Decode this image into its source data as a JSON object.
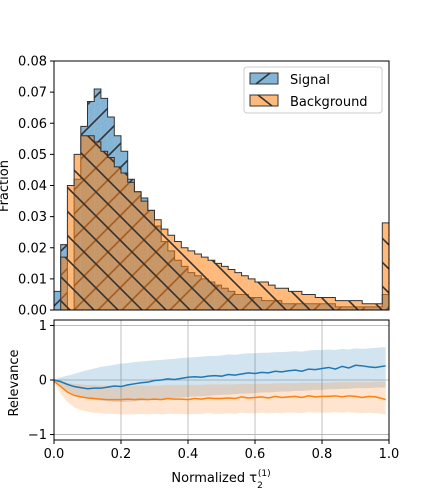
{
  "chart_data": [
    {
      "type": "bar",
      "subtype": "step-histogram",
      "title": "",
      "xlabel": "",
      "ylabel": "Fraction",
      "xlim": [
        0.0,
        1.0
      ],
      "ylim": [
        0.0,
        0.08
      ],
      "yticks": [
        "0.00",
        "0.01",
        "0.02",
        "0.03",
        "0.04",
        "0.05",
        "0.06",
        "0.07",
        "0.08"
      ],
      "grid": false,
      "legend_position": "top-right",
      "bin_width": 0.02,
      "series": [
        {
          "name": "Signal",
          "color": "#1f77b4",
          "hatch": "diagonal-forward",
          "values": [
            0.006,
            0.021,
            0.0,
            0.042,
            0.059,
            0.067,
            0.071,
            0.068,
            0.062,
            0.056,
            0.051,
            0.042,
            0.038,
            0.036,
            0.032,
            0.027,
            0.022,
            0.019,
            0.016,
            0.014,
            0.012,
            0.011,
            0.01,
            0.009,
            0.008,
            0.007,
            0.006,
            0.005,
            0.005,
            0.004,
            0.004,
            0.003,
            0.003,
            0.003,
            0.002,
            0.002,
            0.002,
            0.002,
            0.002,
            0.002,
            0.002,
            0.002,
            0.001,
            0.001,
            0.001,
            0.001,
            0.001,
            0.001,
            0.001,
            0.005
          ]
        },
        {
          "name": "Background",
          "color": "#ff7f0e",
          "hatch": "diagonal-backward",
          "values": [
            0.0,
            0.017,
            0.04,
            0.05,
            0.056,
            0.056,
            0.054,
            0.051,
            0.049,
            0.046,
            0.044,
            0.041,
            0.038,
            0.035,
            0.032,
            0.029,
            0.026,
            0.024,
            0.022,
            0.02,
            0.019,
            0.018,
            0.017,
            0.016,
            0.015,
            0.014,
            0.013,
            0.012,
            0.011,
            0.01,
            0.009,
            0.009,
            0.008,
            0.007,
            0.007,
            0.006,
            0.006,
            0.005,
            0.005,
            0.004,
            0.004,
            0.004,
            0.003,
            0.003,
            0.003,
            0.003,
            0.002,
            0.002,
            0.002,
            0.028
          ]
        }
      ]
    },
    {
      "type": "line",
      "subtype": "line-with-band",
      "title": "",
      "xlabel": "Normalized τ",
      "xlabel_superscript": "(1)",
      "xlabel_subscript": "2",
      "ylabel": "Relevance",
      "xlim": [
        0.0,
        1.0
      ],
      "ylim": [
        -1.1,
        1.1
      ],
      "xticks": [
        "0.0",
        "0.2",
        "0.4",
        "0.6",
        "0.8",
        "1.0"
      ],
      "yticks": [
        "−1",
        "0",
        "1"
      ],
      "grid": true,
      "x": [
        0.0,
        0.02,
        0.04,
        0.06,
        0.08,
        0.1,
        0.12,
        0.14,
        0.16,
        0.18,
        0.2,
        0.22,
        0.24,
        0.26,
        0.28,
        0.3,
        0.32,
        0.34,
        0.36,
        0.38,
        0.4,
        0.42,
        0.44,
        0.46,
        0.48,
        0.5,
        0.52,
        0.54,
        0.56,
        0.58,
        0.6,
        0.62,
        0.64,
        0.66,
        0.68,
        0.7,
        0.72,
        0.74,
        0.76,
        0.78,
        0.8,
        0.82,
        0.84,
        0.86,
        0.88,
        0.9,
        0.92,
        0.94,
        0.96,
        0.98,
        0.99
      ],
      "series": [
        {
          "color": "#1f77b4",
          "values": [
            0.0,
            -0.03,
            -0.08,
            -0.12,
            -0.14,
            -0.16,
            -0.15,
            -0.15,
            -0.13,
            -0.11,
            -0.12,
            -0.09,
            -0.07,
            -0.05,
            -0.04,
            -0.01,
            0.0,
            0.02,
            0.01,
            0.03,
            0.05,
            0.06,
            0.05,
            0.07,
            0.08,
            0.07,
            0.1,
            0.09,
            0.11,
            0.13,
            0.12,
            0.14,
            0.13,
            0.16,
            0.15,
            0.17,
            0.18,
            0.16,
            0.2,
            0.19,
            0.21,
            0.23,
            0.2,
            0.25,
            0.22,
            0.27,
            0.26,
            0.24,
            0.23,
            0.25,
            0.26
          ],
          "band_upper": [
            0.0,
            0.05,
            0.08,
            0.11,
            0.15,
            0.18,
            0.21,
            0.24,
            0.26,
            0.28,
            0.3,
            0.31,
            0.33,
            0.34,
            0.35,
            0.36,
            0.37,
            0.38,
            0.39,
            0.4,
            0.41,
            0.42,
            0.43,
            0.44,
            0.44,
            0.45,
            0.47,
            0.46,
            0.48,
            0.49,
            0.49,
            0.5,
            0.5,
            0.51,
            0.51,
            0.52,
            0.53,
            0.52,
            0.54,
            0.55,
            0.55,
            0.56,
            0.55,
            0.57,
            0.56,
            0.58,
            0.57,
            0.58,
            0.59,
            0.6,
            0.6
          ],
          "band_lower": [
            0.0,
            -0.1,
            -0.2,
            -0.26,
            -0.3,
            -0.34,
            -0.36,
            -0.38,
            -0.39,
            -0.4,
            -0.4,
            -0.4,
            -0.39,
            -0.38,
            -0.37,
            -0.36,
            -0.35,
            -0.34,
            -0.33,
            -0.32,
            -0.31,
            -0.3,
            -0.3,
            -0.29,
            -0.28,
            -0.27,
            -0.27,
            -0.26,
            -0.25,
            -0.25,
            -0.24,
            -0.23,
            -0.23,
            -0.22,
            -0.21,
            -0.21,
            -0.2,
            -0.2,
            -0.19,
            -0.18,
            -0.18,
            -0.17,
            -0.17,
            -0.16,
            -0.16,
            -0.15,
            -0.15,
            -0.15,
            -0.14,
            -0.14,
            -0.14
          ]
        },
        {
          "color": "#ff7f0e",
          "values": [
            -0.02,
            -0.12,
            -0.22,
            -0.28,
            -0.31,
            -0.33,
            -0.34,
            -0.35,
            -0.36,
            -0.36,
            -0.36,
            -0.35,
            -0.36,
            -0.35,
            -0.36,
            -0.35,
            -0.36,
            -0.34,
            -0.35,
            -0.35,
            -0.36,
            -0.34,
            -0.35,
            -0.33,
            -0.34,
            -0.34,
            -0.33,
            -0.34,
            -0.31,
            -0.33,
            -0.32,
            -0.31,
            -0.33,
            -0.3,
            -0.32,
            -0.31,
            -0.3,
            -0.32,
            -0.29,
            -0.31,
            -0.3,
            -0.3,
            -0.29,
            -0.31,
            -0.29,
            -0.3,
            -0.32,
            -0.3,
            -0.31,
            -0.34,
            -0.36
          ],
          "band_upper": [
            0.0,
            -0.02,
            -0.05,
            -0.07,
            -0.08,
            -0.09,
            -0.09,
            -0.1,
            -0.1,
            -0.1,
            -0.1,
            -0.1,
            -0.1,
            -0.1,
            -0.1,
            -0.1,
            -0.1,
            -0.09,
            -0.09,
            -0.09,
            -0.09,
            -0.09,
            -0.09,
            -0.08,
            -0.08,
            -0.08,
            -0.08,
            -0.08,
            -0.07,
            -0.07,
            -0.07,
            -0.07,
            -0.07,
            -0.06,
            -0.06,
            -0.06,
            -0.06,
            -0.05,
            -0.05,
            -0.05,
            -0.05,
            -0.05,
            -0.04,
            -0.04,
            -0.04,
            -0.04,
            -0.04,
            -0.04,
            -0.03,
            -0.03,
            -0.03
          ],
          "band_lower": [
            -0.05,
            -0.25,
            -0.4,
            -0.5,
            -0.55,
            -0.58,
            -0.6,
            -0.61,
            -0.62,
            -0.62,
            -0.63,
            -0.63,
            -0.63,
            -0.62,
            -0.63,
            -0.62,
            -0.63,
            -0.62,
            -0.62,
            -0.62,
            -0.63,
            -0.62,
            -0.62,
            -0.61,
            -0.62,
            -0.62,
            -0.61,
            -0.62,
            -0.6,
            -0.61,
            -0.61,
            -0.6,
            -0.61,
            -0.6,
            -0.61,
            -0.6,
            -0.6,
            -0.61,
            -0.59,
            -0.6,
            -0.6,
            -0.6,
            -0.59,
            -0.6,
            -0.59,
            -0.6,
            -0.61,
            -0.6,
            -0.61,
            -0.62,
            -0.63
          ]
        }
      ]
    }
  ]
}
